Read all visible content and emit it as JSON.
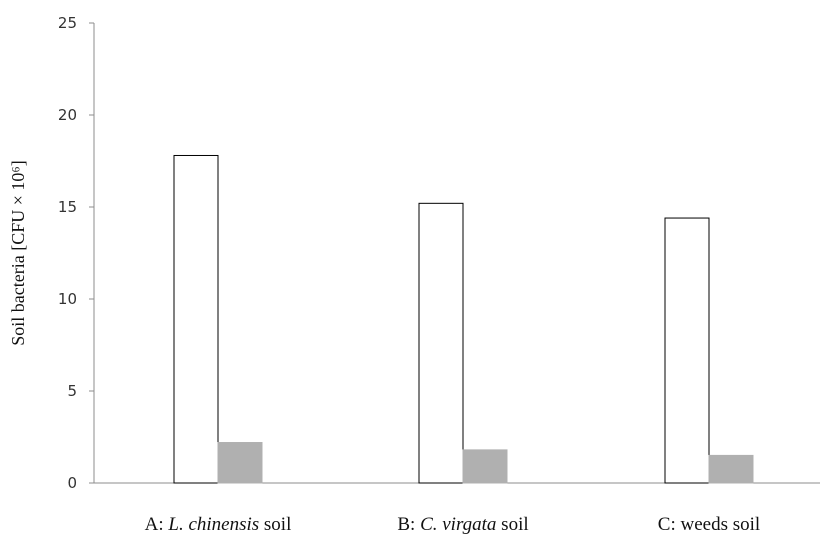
{
  "chart_data": {
    "type": "bar",
    "title": "",
    "ylabel": "Soil bacteria [CFU × 10⁶]",
    "xlabel": "",
    "ylim": [
      0,
      25
    ],
    "yticks": [
      0,
      5,
      10,
      15,
      20,
      25
    ],
    "categories": [
      {
        "prefix": "A: ",
        "italic": "L. chinensis",
        "suffix": " soil"
      },
      {
        "prefix": "B: ",
        "italic": "C. virgata",
        "suffix": " soil"
      },
      {
        "prefix": "C: weeds soil",
        "italic": "",
        "suffix": ""
      }
    ],
    "series": [
      {
        "values": [
          17.8,
          15.2,
          14.4
        ],
        "fill": "#ffffff",
        "stroke": "#000000"
      },
      {
        "values": [
          2.2,
          1.8,
          1.5
        ],
        "fill": "#b0b0b0",
        "stroke": "#b0b0b0"
      }
    ],
    "grid": false,
    "legend": "none"
  }
}
